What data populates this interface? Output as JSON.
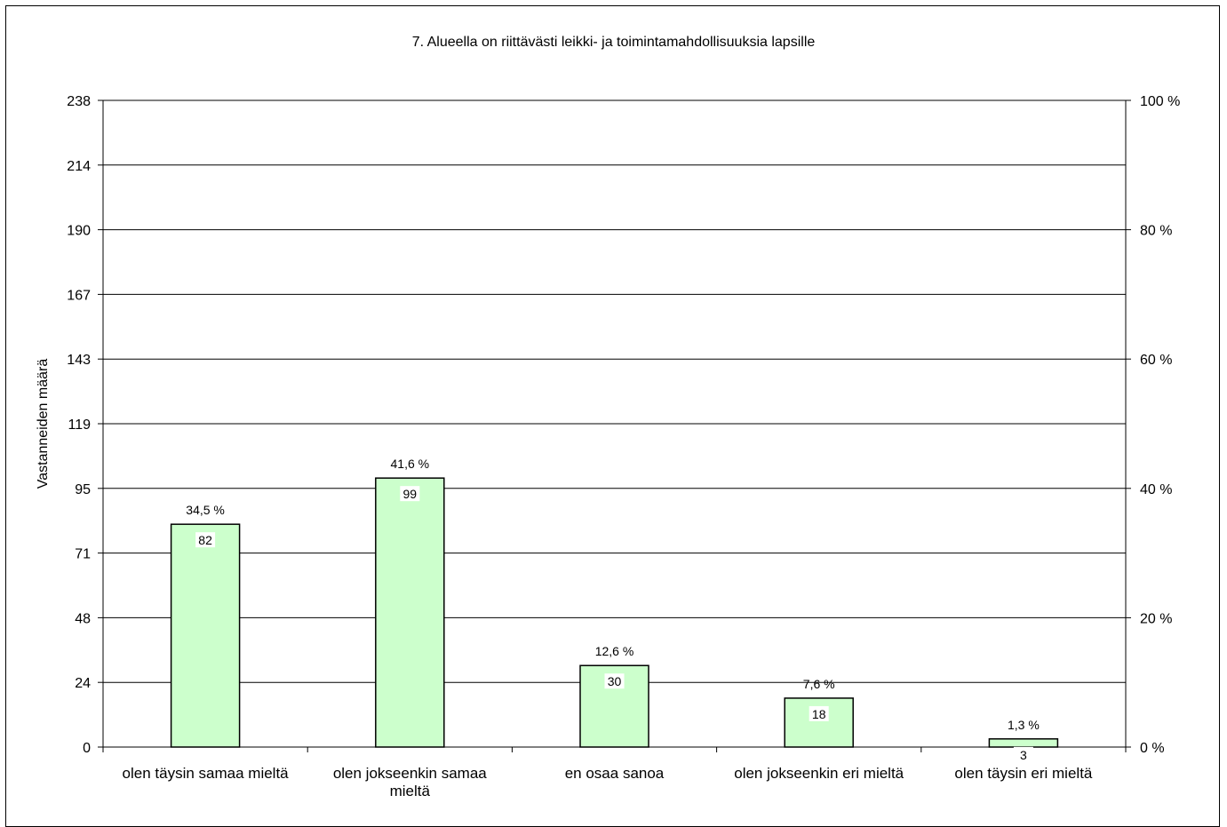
{
  "chart_data": {
    "type": "bar",
    "title": "7. Alueella on riittävästi leikki- ja toimintamahdollisuuksia lapsille",
    "ylabel": "Vastanneiden määrä",
    "ylim": [
      0,
      238
    ],
    "y_ticks": [
      "0",
      "24",
      "48",
      "71",
      "95",
      "119",
      "143",
      "167",
      "190",
      "214",
      "238"
    ],
    "y2_ticks": [
      "0 %",
      "20 %",
      "40 %",
      "60 %",
      "80 %",
      "100 %"
    ],
    "categories": [
      [
        "olen täysin samaa mieltä"
      ],
      [
        "olen jokseenkin samaa",
        "mieltä"
      ],
      [
        "en osaa sanoa"
      ],
      [
        "olen jokseenkin eri mieltä"
      ],
      [
        "olen täysin eri mieltä"
      ]
    ],
    "values": [
      82,
      99,
      30,
      18,
      3
    ],
    "percent_labels": [
      "34,5 %",
      "41,6 %",
      "12,6 %",
      "7,6 %",
      "1,3 %"
    ],
    "bar_color": "#ccffcc",
    "grid": true
  }
}
